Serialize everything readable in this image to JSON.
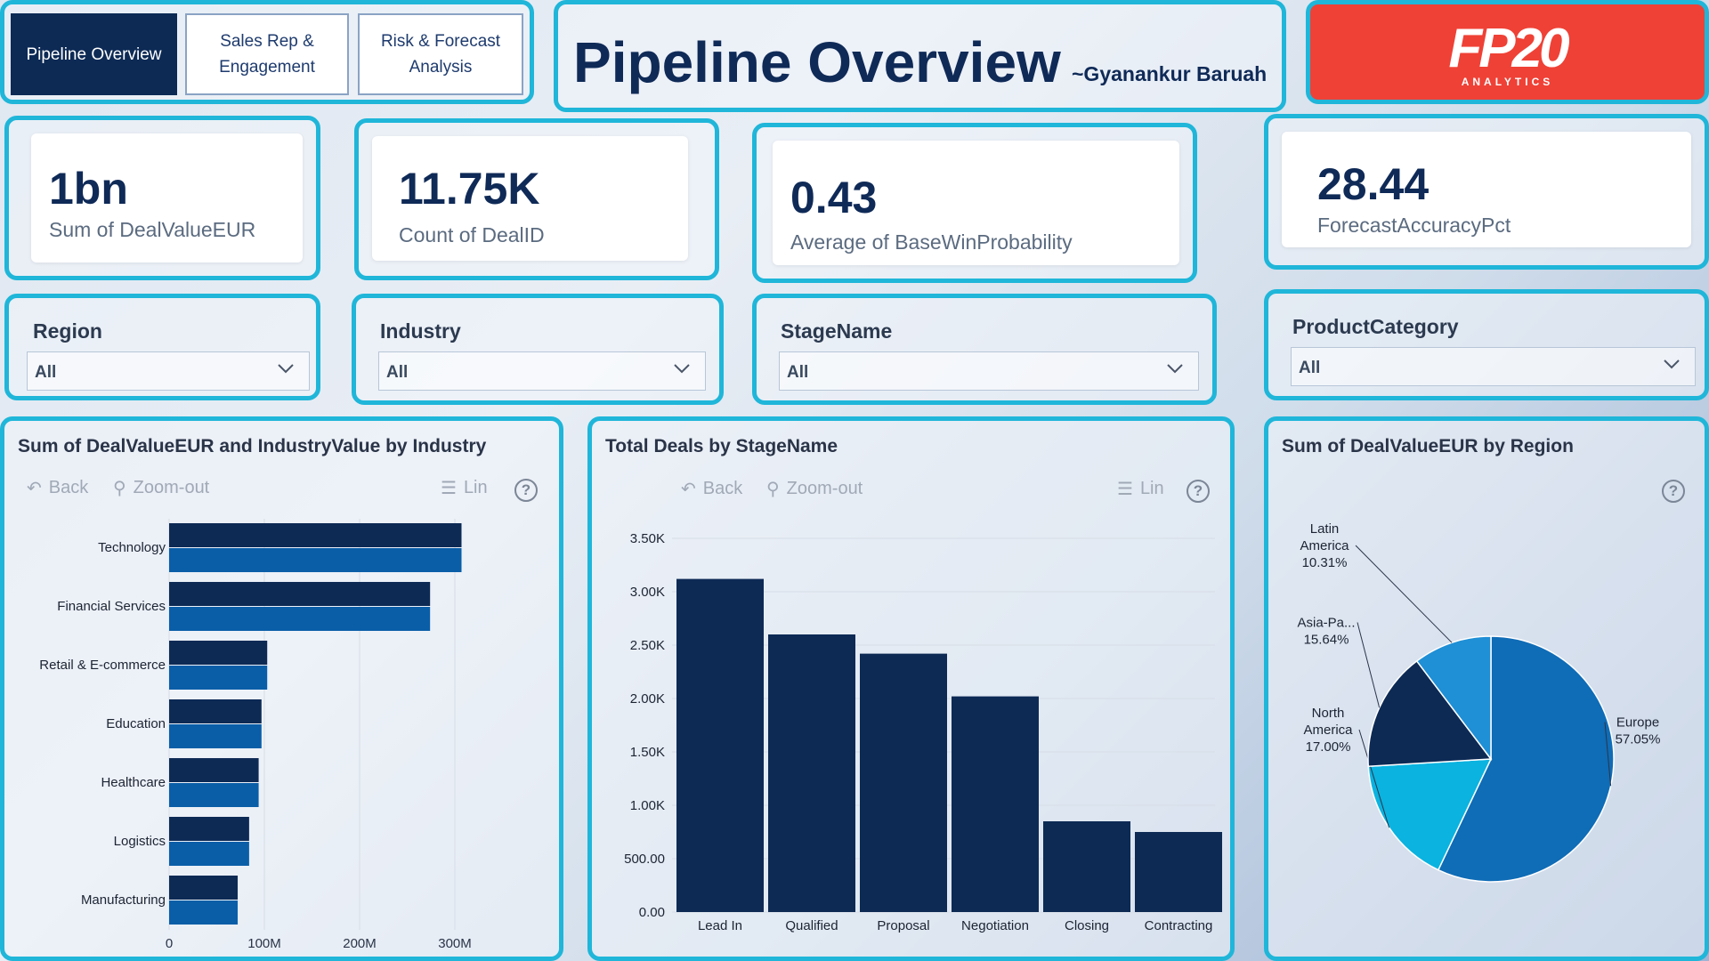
{
  "nav": {
    "tabs": [
      {
        "label": "Pipeline Overview",
        "active": true
      },
      {
        "label": "Sales Rep & Engagement",
        "active": false
      },
      {
        "label": "Risk & Forecast Analysis",
        "active": false
      }
    ]
  },
  "header": {
    "title": "Pipeline Overview",
    "author": "~Gyanankur Baruah",
    "logo_text": "FP20",
    "logo_sub": "ANALYTICS",
    "logo_color": "#ef4136"
  },
  "kpis": [
    {
      "value": "1bn",
      "label": "Sum of DealValueEUR"
    },
    {
      "value": "11.75K",
      "label": "Count of DealID"
    },
    {
      "value": "0.43",
      "label": "Average of BaseWinProbability"
    },
    {
      "value": "28.44",
      "label": "ForecastAccuracyPct"
    }
  ],
  "slicers": [
    {
      "title": "Region",
      "value": "All"
    },
    {
      "title": "Industry",
      "value": "All"
    },
    {
      "title": "StageName",
      "value": "All"
    },
    {
      "title": "ProductCategory",
      "value": "All"
    }
  ],
  "toolbar": {
    "back": "Back",
    "zoom_out": "Zoom-out",
    "lin": "Lin",
    "help": "?"
  },
  "colors": {
    "accent": "#1fb6d9",
    "navy": "#0d2a55",
    "blue": "#0a5ea8",
    "mid": "#0f6cb6",
    "cyan": "#0ab3e0",
    "sky": "#1f8fd6"
  },
  "chart_data": [
    {
      "type": "bar",
      "orientation": "horizontal",
      "title": "Sum of DealValueEUR and IndustryValue by Industry",
      "categories": [
        "Technology",
        "Financial Services",
        "Retail & E-commerce",
        "Education",
        "Healthcare",
        "Logistics",
        "Manufacturing"
      ],
      "series": [
        {
          "name": "DealValueEUR",
          "color": "#0d2a55",
          "values": [
            307,
            274,
            103,
            97,
            94,
            84,
            72
          ]
        },
        {
          "name": "IndustryValue",
          "color": "#0a5ea8",
          "values": [
            307,
            274,
            103,
            97,
            94,
            84,
            72
          ]
        }
      ],
      "xticks": [
        "0",
        "100M",
        "200M",
        "300M"
      ],
      "xlim": [
        0,
        300
      ],
      "grid": true
    },
    {
      "type": "bar",
      "title": "Total Deals by StageName",
      "categories": [
        "Lead In",
        "Qualified",
        "Proposal",
        "Negotiation",
        "Closing",
        "Contracting"
      ],
      "values": [
        3120,
        2600,
        2420,
        2020,
        850,
        750
      ],
      "yticks": [
        "0.00",
        "500.00",
        "1.00K",
        "1.50K",
        "2.00K",
        "2.50K",
        "3.00K",
        "3.50K"
      ],
      "ylim": [
        0,
        3500
      ],
      "color": "#0d2a55",
      "grid": true
    },
    {
      "type": "pie",
      "title": "Sum of DealValueEUR by Region",
      "slices": [
        {
          "label": "Europe",
          "pct": "57.05%",
          "value": 57.05,
          "color": "#0f6cb6"
        },
        {
          "label": "North America",
          "pct": "17.00%",
          "value": 17.0,
          "color": "#0ab3e0"
        },
        {
          "label": "Asia-Pa...",
          "pct": "15.64%",
          "value": 15.64,
          "color": "#0d2a55"
        },
        {
          "label": "Latin America",
          "pct": "10.31%",
          "value": 10.31,
          "color": "#1f8fd6"
        }
      ]
    }
  ]
}
